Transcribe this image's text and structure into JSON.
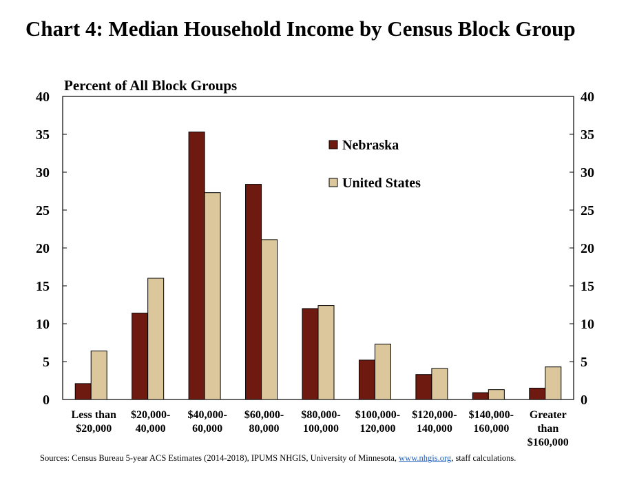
{
  "chart_title": "Chart 4: Median Household Income by Census Block Group",
  "sources": {
    "prefix": "Sources: Census Bureau 5-year ACS Estimates (2014-2018), IPUMS NHGIS, University of Minnesota, ",
    "link_text": "www.nhgis.org",
    "suffix": ", staff calculations."
  },
  "colors": {
    "nebraska": "#6e1a10",
    "united_states": "#dcc79c",
    "axis": "#000000"
  },
  "chart_data": {
    "type": "bar",
    "title": "Chart 4: Median Household Income by Census Block Group",
    "ylabel": "Percent of All Block Groups",
    "xlabel": "",
    "ylim": [
      0,
      40
    ],
    "yticks": [
      0,
      5,
      10,
      15,
      20,
      25,
      30,
      35,
      40
    ],
    "grid": false,
    "dual_y_axis": true,
    "legend_position": "top-right",
    "categories": [
      [
        "Less than",
        "$20,000"
      ],
      [
        "$20,000-",
        "40,000"
      ],
      [
        "$40,000-",
        "60,000"
      ],
      [
        "$60,000-",
        "80,000"
      ],
      [
        "$80,000-",
        "100,000"
      ],
      [
        "$100,000-",
        "120,000"
      ],
      [
        "$120,000-",
        "140,000"
      ],
      [
        "$140,000-",
        "160,000"
      ],
      [
        "Greater",
        "than",
        "$160,000"
      ]
    ],
    "series": [
      {
        "name": "Nebraska",
        "color": "#6e1a10",
        "values": [
          2.1,
          11.4,
          35.3,
          28.4,
          12.0,
          5.2,
          3.3,
          0.9,
          1.5
        ]
      },
      {
        "name": "United States",
        "color": "#dcc79c",
        "values": [
          6.4,
          16.0,
          27.3,
          21.1,
          12.4,
          7.3,
          4.1,
          1.3,
          4.3
        ]
      }
    ]
  }
}
